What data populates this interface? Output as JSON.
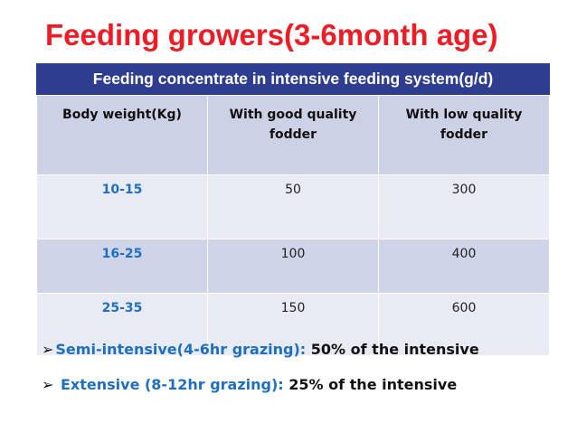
{
  "header": {
    "title": "Feeding growers(3-6month age)"
  },
  "table": {
    "caption": "Feeding concentrate in intensive feeding system(g/d)",
    "columns": [
      "Body weight(Kg)",
      "With good quality fodder",
      "With low quality fodder"
    ],
    "rows": [
      [
        "10-15",
        "50",
        "300"
      ],
      [
        "16-25",
        "100",
        "400"
      ],
      [
        "25-35",
        "150",
        "600"
      ]
    ]
  },
  "bullets": [
    {
      "label": "Semi-intensive(4-6hr grazing):",
      "text": "50% of the intensive"
    },
    {
      "label": "Extensive (8-12hr grazing):",
      "text": "25% of the intensive"
    }
  ]
}
